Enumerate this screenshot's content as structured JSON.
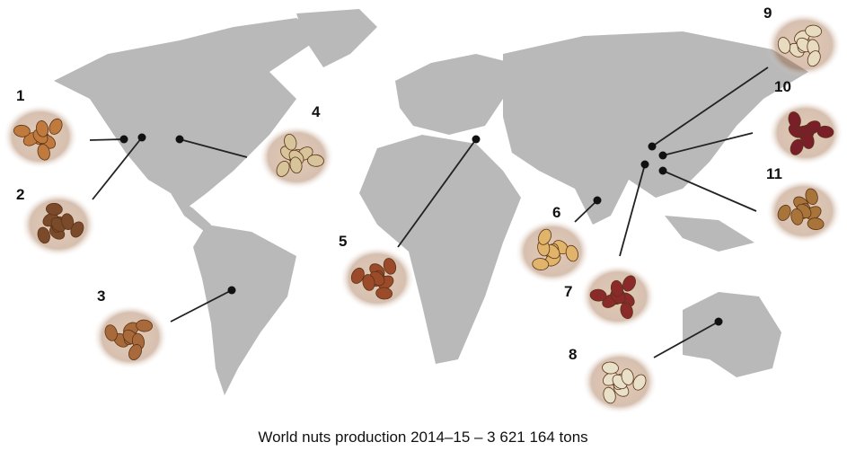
{
  "markers": [
    {
      "label": "1"
    },
    {
      "label": "2"
    },
    {
      "label": "3"
    },
    {
      "label": "4"
    },
    {
      "label": "5"
    },
    {
      "label": "6"
    },
    {
      "label": "7"
    },
    {
      "label": "8"
    },
    {
      "label": "9"
    },
    {
      "label": "10"
    },
    {
      "label": "11"
    }
  ],
  "caption": "World nuts production 2014–15 – 3 621 164 tons"
}
